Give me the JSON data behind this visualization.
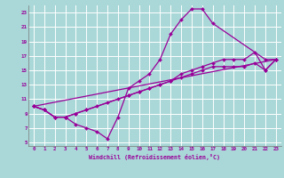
{
  "bg_color": "#aad8d8",
  "grid_color": "#ffffff",
  "line_color": "#990099",
  "xlabel": "Windchill (Refroidissement éolien,°C)",
  "xlim": [
    -0.5,
    23.5
  ],
  "ylim": [
    4.5,
    24.0
  ],
  "xticks": [
    0,
    1,
    2,
    3,
    4,
    5,
    6,
    7,
    8,
    9,
    10,
    11,
    12,
    13,
    14,
    15,
    16,
    17,
    18,
    19,
    20,
    21,
    22,
    23
  ],
  "yticks": [
    5,
    7,
    9,
    11,
    13,
    15,
    17,
    19,
    21,
    23
  ],
  "curve1_x": [
    0,
    1,
    2,
    3,
    4,
    5,
    6,
    7,
    8,
    9,
    10,
    11,
    12,
    13,
    14,
    15,
    16,
    17,
    22,
    23
  ],
  "curve1_y": [
    10,
    9.5,
    8.5,
    8.5,
    7.5,
    7.0,
    6.5,
    5.5,
    8.5,
    12.5,
    13.5,
    14.5,
    16.5,
    20.0,
    22.0,
    23.5,
    23.5,
    21.5,
    16.5,
    16.5
  ],
  "curve2_x": [
    0,
    1,
    2,
    3,
    4,
    5,
    9,
    10,
    11,
    12,
    13,
    14,
    15,
    16,
    17,
    18,
    19,
    20,
    21,
    22,
    23
  ],
  "curve2_y": [
    10,
    9.5,
    8.5,
    8.5,
    9.0,
    9.5,
    11.5,
    12.0,
    12.5,
    13.0,
    13.5,
    14.5,
    15.0,
    15.5,
    16.0,
    16.5,
    16.5,
    16.5,
    17.5,
    15.0,
    16.5
  ],
  "curve3_x": [
    0,
    1,
    2,
    3,
    4,
    5,
    6,
    7,
    8,
    9,
    10,
    11,
    12,
    13,
    14,
    15,
    16,
    17,
    18,
    19,
    20,
    21,
    22,
    23
  ],
  "curve3_y": [
    10,
    9.5,
    8.5,
    8.5,
    9.0,
    9.5,
    10.0,
    10.5,
    11.0,
    11.5,
    12.0,
    12.5,
    13.0,
    13.5,
    14.0,
    14.5,
    15.0,
    15.5,
    15.5,
    15.5,
    15.5,
    16.0,
    15.0,
    16.5
  ],
  "curve4_x": [
    0,
    23
  ],
  "curve4_y": [
    10,
    16.5
  ]
}
